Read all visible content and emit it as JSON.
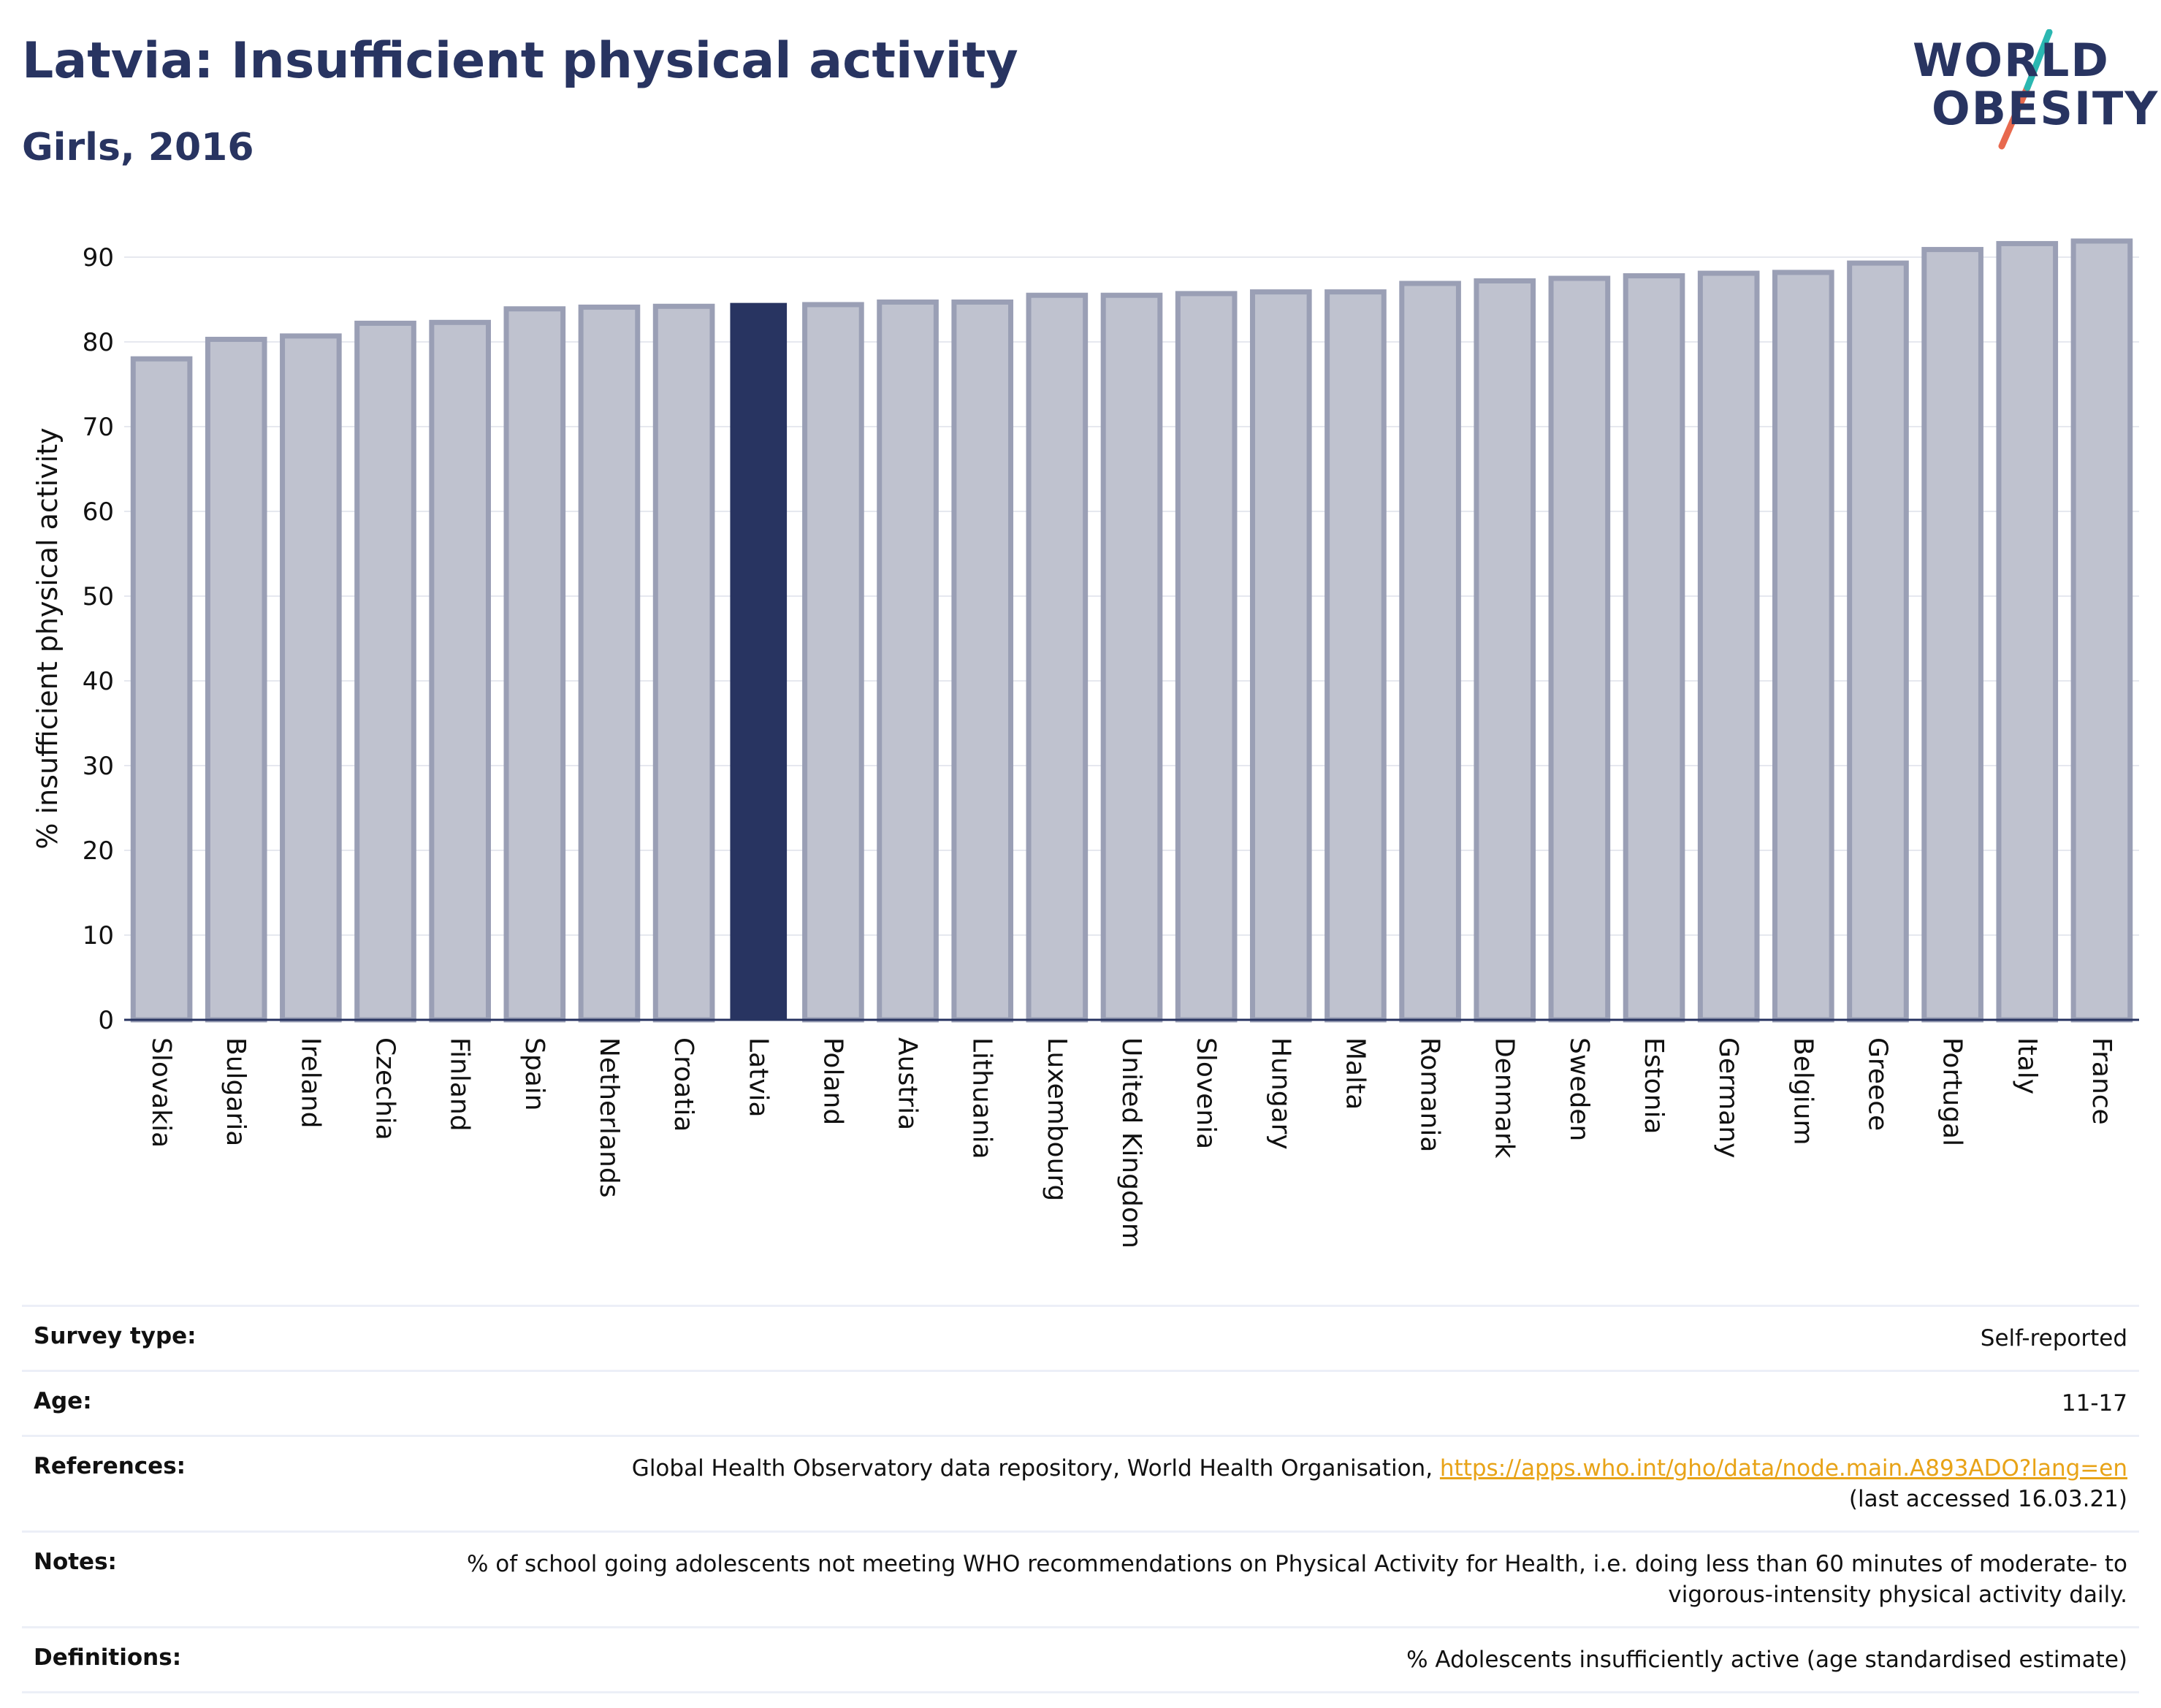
{
  "title": "Latvia: Insufficient physical activity",
  "subtitle": "Girls, 2016",
  "logo": {
    "line1": "WORLD",
    "line2": "OBESITY",
    "accent1": "#2bb7b1",
    "accent2": "#e8694e"
  },
  "colors": {
    "highlight": "#283461",
    "bar_fill": "#bfc2cf",
    "bar_stroke": "#9a9fb5",
    "text": "#283461"
  },
  "chart_data": {
    "type": "bar",
    "ylabel": "% insufficient physical activity",
    "xlabel": "",
    "ylim": [
      0,
      90
    ],
    "yticks": [
      0,
      10,
      20,
      30,
      40,
      50,
      60,
      70,
      80,
      90
    ],
    "grid": true,
    "highlight": "Latvia",
    "categories": [
      "Slovakia",
      "Bulgaria",
      "Ireland",
      "Czechia",
      "Finland",
      "Spain",
      "Netherlands",
      "Croatia",
      "Latvia",
      "Poland",
      "Austria",
      "Lithuania",
      "Luxembourg",
      "United Kingdom",
      "Slovenia",
      "Hungary",
      "Malta",
      "Romania",
      "Denmark",
      "Sweden",
      "Estonia",
      "Germany",
      "Belgium",
      "Greece",
      "Portugal",
      "Italy",
      "France"
    ],
    "values": [
      78.0,
      80.3,
      80.7,
      82.2,
      82.3,
      83.9,
      84.1,
      84.2,
      84.6,
      84.4,
      84.7,
      84.7,
      85.5,
      85.5,
      85.7,
      85.9,
      85.9,
      86.9,
      87.2,
      87.5,
      87.8,
      88.1,
      88.2,
      89.3,
      90.9,
      91.6,
      91.9
    ]
  },
  "meta": [
    {
      "label": "Survey type:",
      "value": "Self-reported"
    },
    {
      "label": "Age:",
      "value": "11-17"
    },
    {
      "label": "References:",
      "value": "Global Health Observatory data repository, World Health Organisation,",
      "link": "https://apps.who.int/gho/data/node.main.A893ADO?lang=en",
      "value2": "(last accessed 16.03.21)"
    },
    {
      "label": "Notes:",
      "value": "% of school going adolescents not meeting WHO recommendations on Physical Activity for Health, i.e. doing less than 60 minutes of moderate- to vigorous-intensity physical activity daily."
    },
    {
      "label": "Definitions:",
      "value": "% Adolescents insufficiently active (age standardised estimate)"
    }
  ]
}
